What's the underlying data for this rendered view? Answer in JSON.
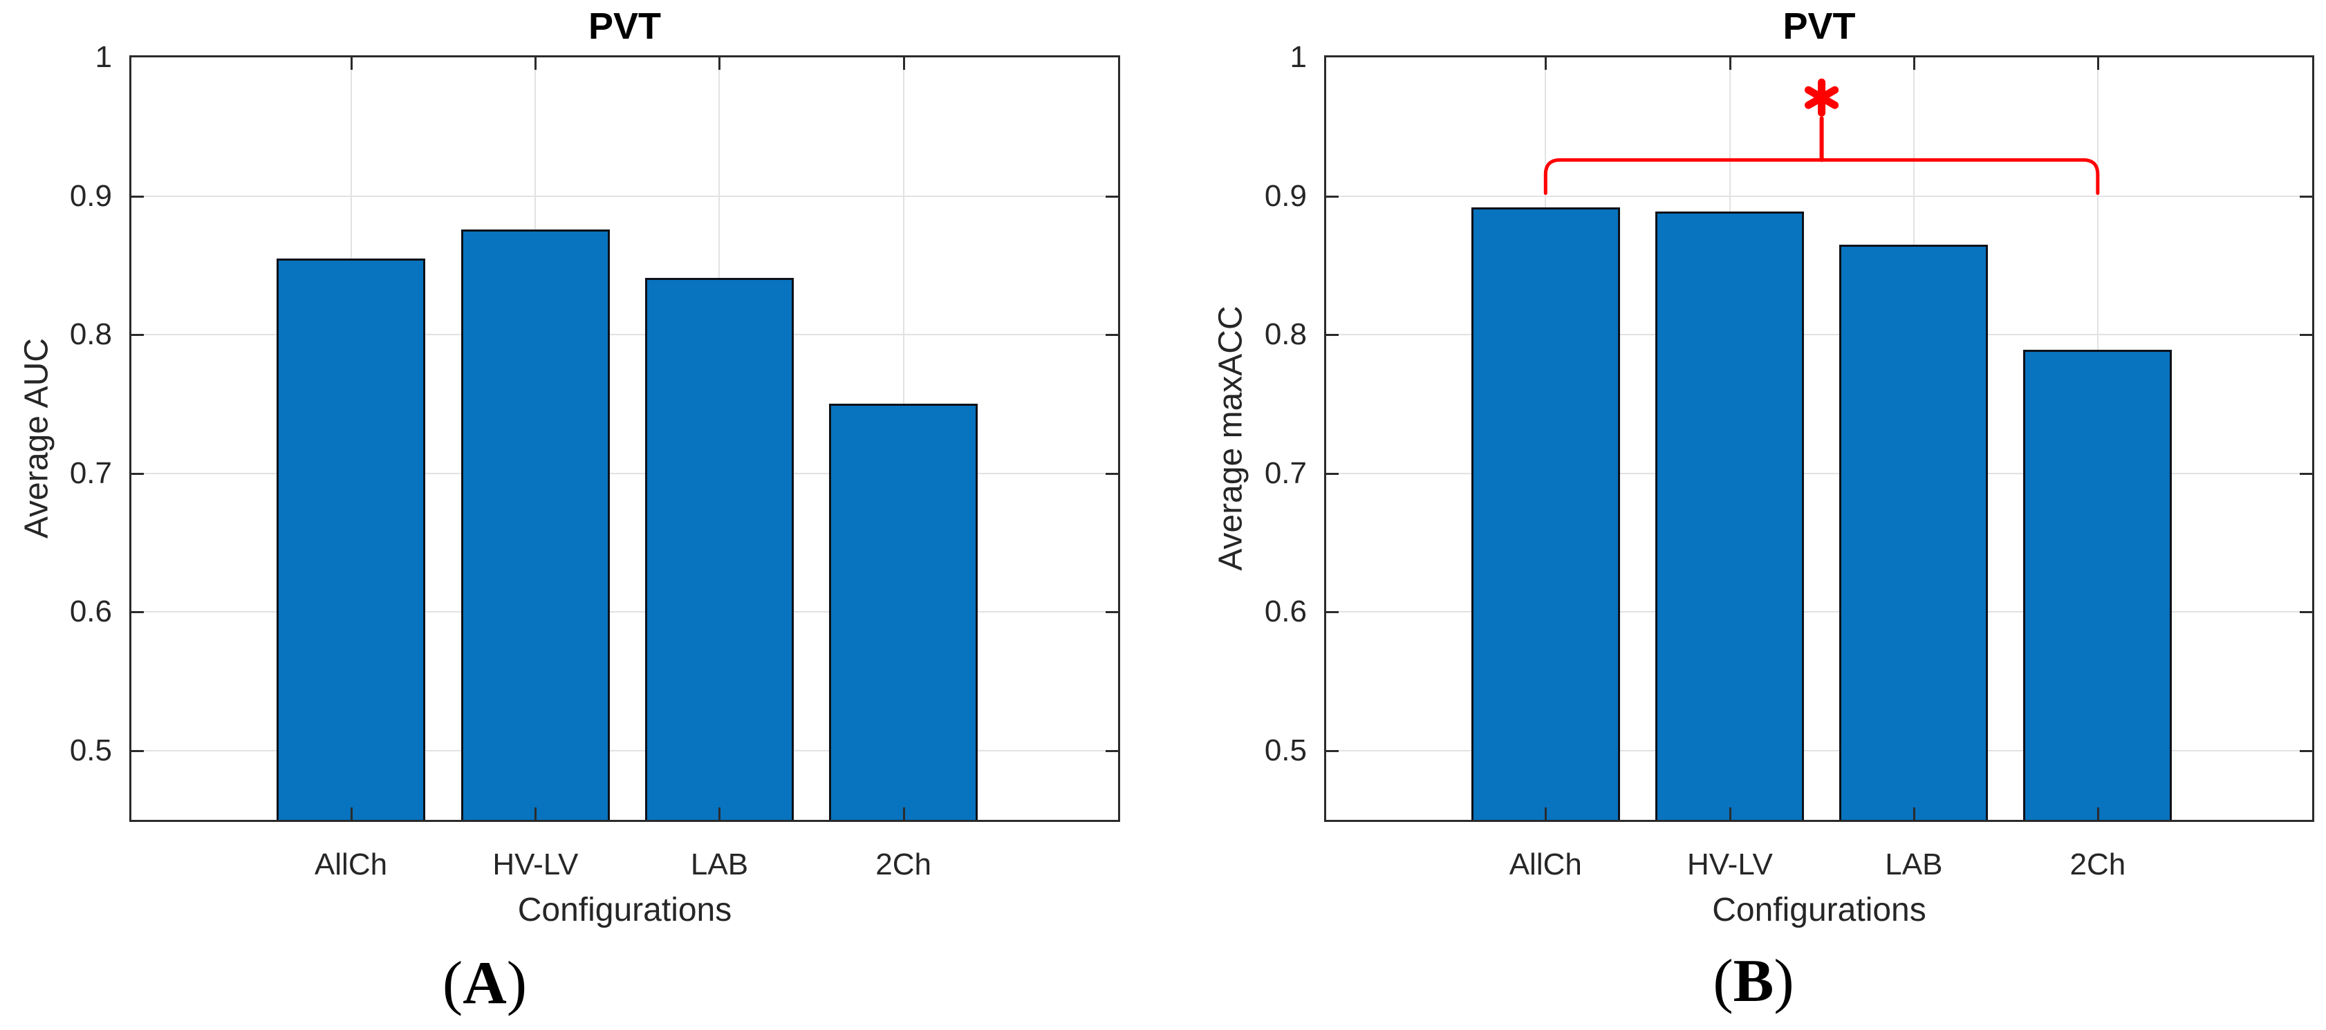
{
  "colors": {
    "bar_fill": "#0873be",
    "bar_edge": "#0e1119",
    "gridline": "#e2e2e2",
    "axis_box": "#2b2b2b",
    "tick_text": "#262626",
    "title_text": "#000000",
    "significance_red": "#ff0000",
    "background": "#ffffff"
  },
  "panels": [
    {
      "title": "PVT",
      "ylabel": "Average AUC",
      "xlabel": "Configurations",
      "caption_open": "(",
      "caption_letter": "A",
      "caption_close": ")"
    },
    {
      "title": "PVT",
      "ylabel": "Average maxACC",
      "xlabel": "Configurations",
      "caption_open": "(",
      "caption_letter": "B",
      "caption_close": ")",
      "significance_marker": "*"
    }
  ],
  "chart_data": [
    {
      "type": "bar",
      "title": "PVT",
      "xlabel": "Configurations",
      "ylabel": "Average AUC",
      "categories": [
        "AllCh",
        "HV-LV",
        "LAB",
        "2Ch"
      ],
      "values": [
        0.855,
        0.876,
        0.841,
        0.75
      ],
      "ylim": [
        0.45,
        1.0
      ],
      "ytick_values": [
        1,
        0.9,
        0.8,
        0.7,
        0.6,
        0.5
      ],
      "ytick_labels": [
        "1",
        "0.9",
        "0.8",
        "0.7",
        "0.6",
        "0.5"
      ],
      "grid": true,
      "legend_position": "none"
    },
    {
      "type": "bar",
      "title": "PVT",
      "xlabel": "Configurations",
      "ylabel": "Average maxACC",
      "categories": [
        "AllCh",
        "HV-LV",
        "LAB",
        "2Ch"
      ],
      "values": [
        0.892,
        0.889,
        0.865,
        0.789
      ],
      "ylim": [
        0.45,
        1.0
      ],
      "ytick_values": [
        1,
        0.9,
        0.8,
        0.7,
        0.6,
        0.5
      ],
      "ytick_labels": [
        "1",
        "0.9",
        "0.8",
        "0.7",
        "0.6",
        "0.5"
      ],
      "grid": true,
      "legend_position": "none",
      "significance": {
        "marker": "*",
        "from_category": "AllCh",
        "to_category": "2Ch",
        "bracket_y": 0.926,
        "bracket_end_drop_y": 0.902,
        "peak_y": 0.956,
        "marker_y": 0.971
      }
    }
  ]
}
